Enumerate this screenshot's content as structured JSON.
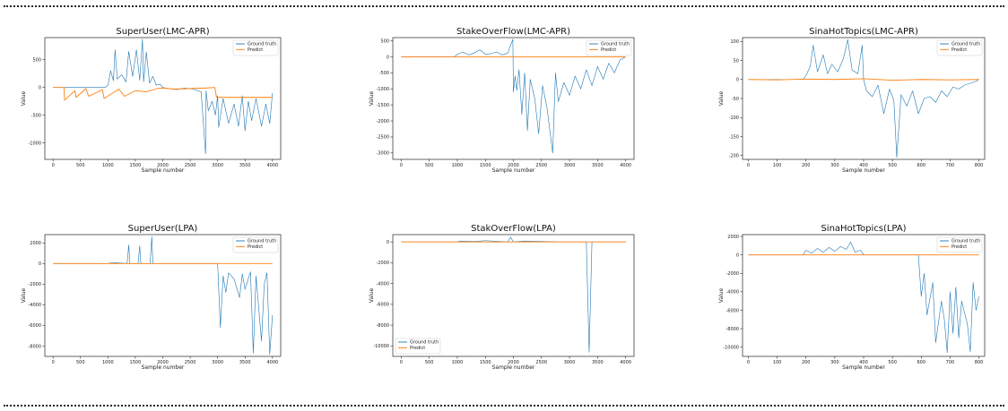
{
  "figure": {
    "colors": {
      "ground_truth": "#1f77b4",
      "predict": "#ff7f0e",
      "frame": "#222222"
    }
  },
  "chart_data": [
    {
      "type": "line",
      "title": "SuperUser(LMC-APR)",
      "xlabel": "Sample number",
      "ylabel": "Value",
      "xlim": [
        -150,
        4150
      ],
      "ylim": [
        -1300,
        900
      ],
      "xticks": [
        0,
        500,
        1000,
        1500,
        2000,
        2500,
        3000,
        3500,
        4000
      ],
      "yticks": [
        -1000,
        -500,
        0,
        500
      ],
      "legend": {
        "position": "top-right",
        "entries": [
          "Ground truth",
          "Predict"
        ]
      },
      "series": [
        {
          "name": "Ground truth",
          "x": [
            0,
            950,
            1000,
            1050,
            1100,
            1130,
            1170,
            1250,
            1330,
            1380,
            1450,
            1520,
            1580,
            1630,
            1650,
            1700,
            1760,
            1820,
            1880,
            1950,
            2000,
            2100,
            2250,
            2400,
            2550,
            2700,
            2780,
            2790,
            2830,
            2900,
            2960,
            3000,
            3020,
            3100,
            3200,
            3300,
            3380,
            3450,
            3500,
            3560,
            3620,
            3700,
            3800,
            3880,
            3950,
            4000
          ],
          "y": [
            0,
            0,
            40,
            300,
            120,
            680,
            150,
            230,
            100,
            650,
            200,
            680,
            130,
            870,
            100,
            640,
            80,
            200,
            40,
            60,
            0,
            -20,
            -40,
            -10,
            -30,
            -80,
            -1200,
            -60,
            -420,
            -250,
            -500,
            -150,
            -720,
            -200,
            -650,
            -300,
            -700,
            -150,
            -780,
            -250,
            -600,
            -200,
            -700,
            -300,
            -650,
            -100
          ]
        },
        {
          "name": "Predict",
          "x": [
            0,
            200,
            210,
            400,
            420,
            600,
            650,
            900,
            930,
            1200,
            1300,
            1500,
            1700,
            1900,
            2000,
            2200,
            2500,
            2800,
            2950,
            2980,
            3100,
            3300,
            3500,
            3700,
            3900,
            4000
          ],
          "y": [
            0,
            0,
            -230,
            -60,
            -180,
            -20,
            -160,
            -40,
            -200,
            -30,
            -160,
            -60,
            -80,
            -20,
            -10,
            -30,
            -20,
            -10,
            0,
            -180,
            -180,
            -180,
            -180,
            -180,
            -180,
            -180
          ]
        }
      ]
    },
    {
      "type": "line",
      "title": "StakeOverFlow(LMC-APR)",
      "xlabel": "Sample number",
      "ylabel": "Value",
      "xlim": [
        -150,
        4150
      ],
      "ylim": [
        -3200,
        600
      ],
      "xticks": [
        0,
        500,
        1000,
        1500,
        2000,
        2500,
        3000,
        3500,
        4000
      ],
      "yticks": [
        -3000,
        -2500,
        -2000,
        -1500,
        -1000,
        -500,
        0,
        500
      ],
      "legend": {
        "position": "top-right",
        "entries": [
          "Ground truth",
          "Predict"
        ]
      },
      "series": [
        {
          "name": "Ground truth",
          "x": [
            0,
            950,
            1000,
            1100,
            1200,
            1300,
            1400,
            1500,
            1600,
            1700,
            1800,
            1900,
            1990,
            2000,
            2030,
            2060,
            2100,
            2150,
            2200,
            2250,
            2300,
            2380,
            2450,
            2520,
            2600,
            2700,
            2750,
            2800,
            2900,
            3000,
            3100,
            3200,
            3300,
            3400,
            3500,
            3600,
            3700,
            3800,
            3900,
            4000
          ],
          "y": [
            0,
            0,
            80,
            150,
            60,
            120,
            220,
            80,
            100,
            150,
            60,
            120,
            550,
            -1100,
            -600,
            -1050,
            -400,
            -1800,
            -500,
            -2300,
            -700,
            -1300,
            -2400,
            -900,
            -1600,
            -3000,
            -500,
            -1400,
            -800,
            -1200,
            -600,
            -1000,
            -400,
            -900,
            -300,
            -700,
            -200,
            -500,
            -100,
            0
          ]
        },
        {
          "name": "Predict",
          "x": [
            0,
            4000
          ],
          "y": [
            0,
            0
          ]
        }
      ]
    },
    {
      "type": "line",
      "title": "SinaHotTopics(LMC-APR)",
      "xlabel": "Sample number",
      "ylabel": "Value",
      "xlim": [
        -20,
        820
      ],
      "ylim": [
        -210,
        110
      ],
      "xticks": [
        0,
        100,
        200,
        300,
        400,
        500,
        600,
        700,
        800
      ],
      "yticks": [
        -200,
        -150,
        -100,
        -50,
        0,
        50,
        100
      ],
      "legend": {
        "position": "top-right",
        "entries": [
          "Ground truth",
          "Predict"
        ]
      },
      "series": [
        {
          "name": "Ground truth",
          "x": [
            0,
            190,
            200,
            215,
            225,
            240,
            260,
            275,
            290,
            310,
            330,
            345,
            360,
            380,
            395,
            400,
            410,
            430,
            450,
            470,
            490,
            505,
            515,
            530,
            550,
            570,
            590,
            610,
            630,
            650,
            670,
            690,
            710,
            730,
            750,
            770,
            790,
            800
          ],
          "y": [
            0,
            0,
            10,
            35,
            90,
            20,
            65,
            15,
            40,
            20,
            55,
            105,
            25,
            15,
            90,
            0,
            -30,
            -45,
            -15,
            -90,
            -25,
            -55,
            -205,
            -40,
            -70,
            -30,
            -90,
            -50,
            -45,
            -60,
            -30,
            -45,
            -20,
            -25,
            -15,
            -10,
            -5,
            0
          ]
        },
        {
          "name": "Predict",
          "x": [
            0,
            100,
            200,
            300,
            400,
            500,
            600,
            700,
            800
          ],
          "y": [
            0,
            -1,
            1,
            0,
            2,
            -2,
            0,
            -1,
            0
          ]
        }
      ]
    },
    {
      "type": "line",
      "title": "SuperUser(LPA)",
      "xlabel": "Sample number",
      "ylabel": "Value",
      "xlim": [
        -150,
        4150
      ],
      "ylim": [
        -9000,
        2800
      ],
      "xticks": [
        0,
        500,
        1000,
        1500,
        2000,
        2500,
        3000,
        3500,
        4000
      ],
      "yticks": [
        -8000,
        -6000,
        -4000,
        -2000,
        0,
        2000
      ],
      "legend": {
        "position": "top-right",
        "entries": [
          "Ground truth",
          "Predict"
        ]
      },
      "series": [
        {
          "name": "Ground truth",
          "x": [
            0,
            1000,
            1100,
            1200,
            1350,
            1380,
            1400,
            1550,
            1580,
            1600,
            1770,
            1800,
            1820,
            2000,
            2500,
            3000,
            3050,
            3100,
            3150,
            3200,
            3300,
            3400,
            3450,
            3500,
            3600,
            3650,
            3700,
            3800,
            3850,
            3900,
            3950,
            4000
          ],
          "y": [
            0,
            0,
            100,
            50,
            0,
            1800,
            0,
            0,
            1700,
            0,
            0,
            2600,
            0,
            0,
            0,
            0,
            -6200,
            -1200,
            -2800,
            -900,
            -1500,
            -3300,
            -1000,
            -2500,
            -800,
            -8700,
            -1200,
            -7500,
            -2000,
            -900,
            -8800,
            -5000
          ]
        },
        {
          "name": "Predict",
          "x": [
            0,
            4000
          ],
          "y": [
            0,
            0
          ]
        }
      ]
    },
    {
      "type": "line",
      "title": "StakOverFlow(LPA)",
      "xlabel": "Sample number",
      "ylabel": "Value",
      "xlim": [
        -150,
        4150
      ],
      "ylim": [
        -11000,
        700
      ],
      "xticks": [
        0,
        500,
        1000,
        1500,
        2000,
        2500,
        3000,
        3500,
        4000
      ],
      "yticks": [
        -10000,
        -8000,
        -6000,
        -4000,
        -2000,
        0
      ],
      "legend": {
        "position": "bottom-left",
        "entries": [
          "Ground truth",
          "Predict"
        ]
      },
      "series": [
        {
          "name": "Ground truth",
          "x": [
            0,
            1000,
            1050,
            1300,
            1500,
            1900,
            1950,
            2000,
            2200,
            2800,
            3300,
            3350,
            3400,
            4000
          ],
          "y": [
            0,
            0,
            80,
            40,
            120,
            0,
            450,
            0,
            80,
            0,
            0,
            -10600,
            0,
            0
          ]
        },
        {
          "name": "Predict",
          "x": [
            0,
            4000
          ],
          "y": [
            0,
            0
          ]
        }
      ]
    },
    {
      "type": "line",
      "title": "SinaHotTopics(LPA)",
      "xlabel": "Sample number",
      "ylabel": "Value",
      "xlim": [
        -20,
        820
      ],
      "ylim": [
        -11000,
        2200
      ],
      "xticks": [
        0,
        100,
        200,
        300,
        400,
        500,
        600,
        700,
        800
      ],
      "yticks": [
        -10000,
        -8000,
        -6000,
        -4000,
        -2000,
        0,
        2000
      ],
      "legend": {
        "position": "top-right",
        "entries": [
          "Ground truth",
          "Predict"
        ]
      },
      "series": [
        {
          "name": "Ground truth",
          "x": [
            0,
            190,
            200,
            220,
            240,
            260,
            280,
            300,
            320,
            340,
            355,
            370,
            390,
            400,
            590,
            600,
            610,
            620,
            640,
            650,
            670,
            680,
            690,
            700,
            710,
            720,
            730,
            740,
            760,
            770,
            780,
            790,
            800
          ],
          "y": [
            0,
            0,
            500,
            200,
            700,
            300,
            800,
            400,
            900,
            600,
            1400,
            300,
            500,
            0,
            0,
            -4500,
            -2000,
            -6500,
            -3000,
            -9500,
            -5000,
            -7000,
            -10600,
            -4000,
            -8500,
            -3500,
            -9000,
            -5000,
            -7500,
            -10500,
            -3000,
            -6000,
            -4500
          ]
        },
        {
          "name": "Predict",
          "x": [
            0,
            800
          ],
          "y": [
            0,
            0
          ]
        }
      ]
    }
  ]
}
